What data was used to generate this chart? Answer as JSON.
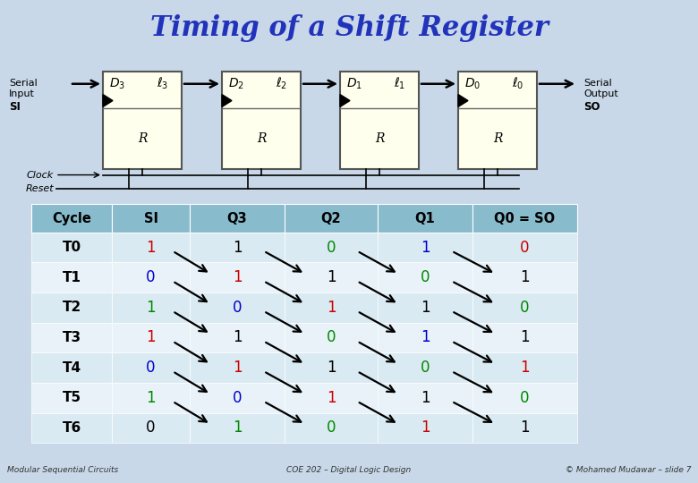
{
  "title": "Timing of a Shift Register",
  "title_color": "#2233bb",
  "title_bg": "#ccccff",
  "main_bg": "#c8d8e8",
  "table_header_bg": "#88bbcc",
  "row_bg": [
    "#daeaf2",
    "#e8f2f8"
  ],
  "footer_bg": "#ffffcc",
  "ff_bg": "#ffffee",
  "ff_border": "#555555",
  "header_cols": [
    "Cycle",
    "SI",
    "Q3",
    "Q2",
    "Q1",
    "Q0 = SO"
  ],
  "rows": [
    {
      "cycle": "T0",
      "vals": [
        "1",
        "1",
        "0",
        "1",
        "0"
      ],
      "colors": [
        "#cc0000",
        "#000000",
        "#008800",
        "#0000cc",
        "#cc0000"
      ]
    },
    {
      "cycle": "T1",
      "vals": [
        "0",
        "1",
        "1",
        "0",
        "1"
      ],
      "colors": [
        "#0000cc",
        "#cc0000",
        "#000000",
        "#008800",
        "#000000"
      ]
    },
    {
      "cycle": "T2",
      "vals": [
        "1",
        "0",
        "1",
        "1",
        "0"
      ],
      "colors": [
        "#008800",
        "#0000cc",
        "#cc0000",
        "#000000",
        "#008800"
      ]
    },
    {
      "cycle": "T3",
      "vals": [
        "1",
        "1",
        "0",
        "1",
        "1"
      ],
      "colors": [
        "#cc0000",
        "#000000",
        "#008800",
        "#0000cc",
        "#000000"
      ]
    },
    {
      "cycle": "T4",
      "vals": [
        "0",
        "1",
        "1",
        "0",
        "1"
      ],
      "colors": [
        "#0000cc",
        "#cc0000",
        "#000000",
        "#008800",
        "#cc0000"
      ]
    },
    {
      "cycle": "T5",
      "vals": [
        "1",
        "0",
        "1",
        "1",
        "0"
      ],
      "colors": [
        "#008800",
        "#0000cc",
        "#cc0000",
        "#000000",
        "#008800"
      ]
    },
    {
      "cycle": "T6",
      "vals": [
        "0",
        "1",
        "0",
        "1",
        "1"
      ],
      "colors": [
        "#000000",
        "#008800",
        "#008800",
        "#cc0000",
        "#000000"
      ]
    }
  ],
  "footer_left": "Modular Sequential Circuits",
  "footer_center": "COE 202 – Digital Logic Design",
  "footer_right": "© Mohamed Mudawar – slide 7"
}
